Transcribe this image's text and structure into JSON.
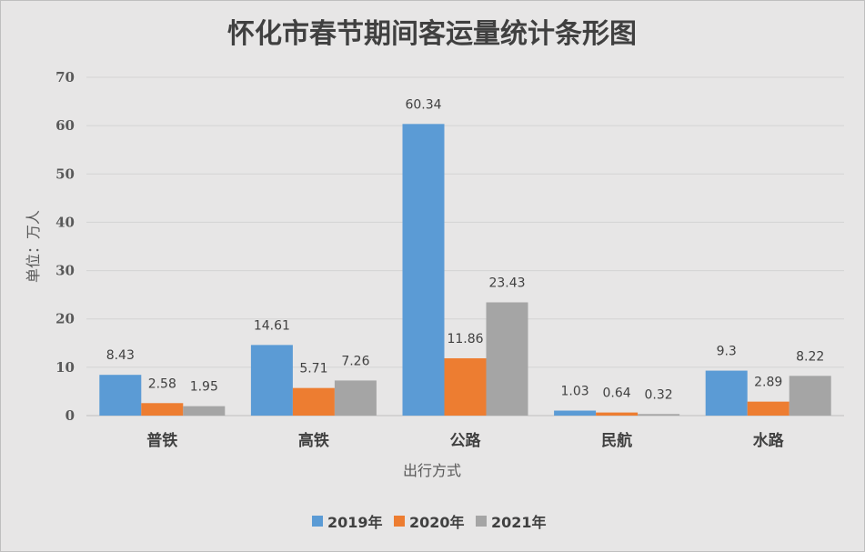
{
  "chart_data": {
    "type": "bar",
    "title": "怀化市春节期间客运量统计条形图",
    "xlabel": "出行方式",
    "ylabel": "单位：万人",
    "ylim": [
      0,
      70
    ],
    "yticks": [
      0,
      10,
      20,
      30,
      40,
      50,
      60,
      70
    ],
    "grid": true,
    "legend_position": "bottom",
    "categories": [
      "普铁",
      "高铁",
      "公路",
      "民航",
      "水路"
    ],
    "series": [
      {
        "name": "2019年",
        "color": "#5b9bd5",
        "values": [
          8.43,
          14.61,
          60.34,
          1.03,
          9.3
        ]
      },
      {
        "name": "2020年",
        "color": "#ed7d31",
        "values": [
          2.58,
          5.71,
          11.86,
          0.64,
          2.89
        ]
      },
      {
        "name": "2021年",
        "color": "#a5a5a5",
        "values": [
          1.95,
          7.26,
          23.43,
          0.32,
          8.22
        ]
      }
    ]
  }
}
